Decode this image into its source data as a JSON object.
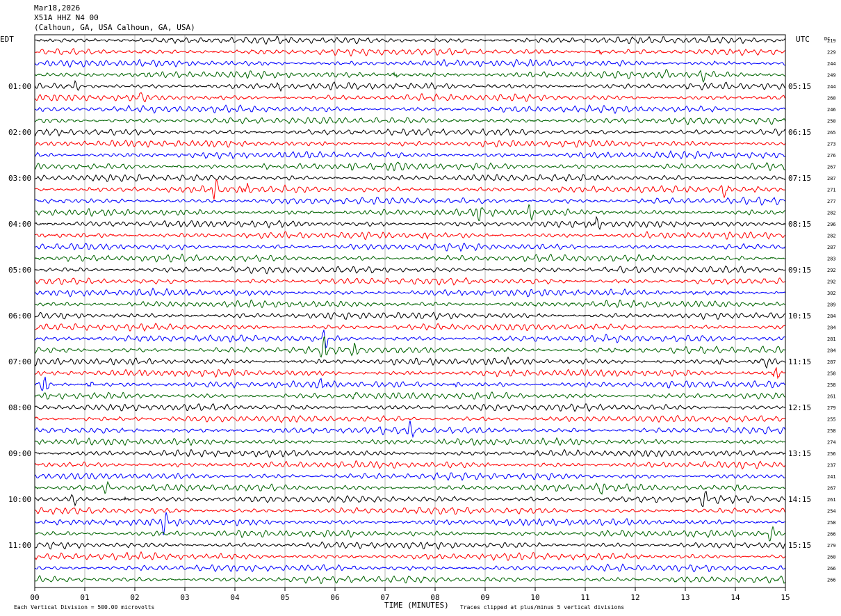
{
  "header": {
    "date": "Mar18,2026",
    "station": "X51A HHZ N4 00",
    "location": "(Calhoun, GA, USA Calhoun, GA, USA)"
  },
  "left_axis_label": "EDT",
  "right_axis_label": "UTC",
  "dc_label": "DC",
  "footer": {
    "scale_note": "Each Vertical Division =  500.00 microvolts",
    "clip_note": "Traces clipped at plus/minus 5 vertical divisions",
    "xlabel": "TIME (MINUTES)"
  },
  "colors": {
    "cycle": [
      "#000000",
      "#ff0000",
      "#0000ff",
      "#006400"
    ],
    "grid": "#999999"
  },
  "chart_data": {
    "type": "line",
    "subtype": "helicorder",
    "xlabel": "TIME (MINUTES)",
    "xlim": [
      0,
      15
    ],
    "x_ticks": [
      "00",
      "01",
      "02",
      "03",
      "04",
      "05",
      "06",
      "07",
      "08",
      "09",
      "10",
      "11",
      "12",
      "13",
      "14",
      "15"
    ],
    "rows": 48,
    "minutes_per_row": 15,
    "left_time_labels": [
      "01:00",
      "02:00",
      "03:00",
      "04:00",
      "05:00",
      "06:00",
      "07:00",
      "08:00",
      "09:00",
      "10:00",
      "11:00"
    ],
    "right_time_labels": [
      "05:15",
      "06:15",
      "07:15",
      "08:15",
      "09:15",
      "10:15",
      "11:15",
      "12:15",
      "13:15",
      "14:15",
      "15:15"
    ],
    "time_label_rows": [
      4,
      8,
      12,
      16,
      20,
      24,
      28,
      32,
      36,
      40,
      44
    ],
    "dc_offsets": [
      219,
      229,
      244,
      249,
      244,
      260,
      246,
      250,
      265,
      273,
      276,
      267,
      287,
      271,
      277,
      282,
      296,
      282,
      287,
      283,
      292,
      292,
      302,
      289,
      284,
      284,
      281,
      284,
      287,
      258,
      258,
      261,
      279,
      255,
      258,
      274,
      256,
      237,
      241,
      267,
      261,
      254,
      258,
      266,
      279,
      260,
      266,
      266
    ],
    "events": [
      {
        "row": 1,
        "minute": 11.3,
        "amp": 1.8
      },
      {
        "row": 3,
        "minute": 7.2,
        "amp": 2.0
      },
      {
        "row": 3,
        "minute": 12.6,
        "amp": 1.8
      },
      {
        "row": 3,
        "minute": 13.4,
        "amp": 1.6
      },
      {
        "row": 4,
        "minute": 0.8,
        "amp": 1.5
      },
      {
        "row": 4,
        "minute": 4.9,
        "amp": 1.5
      },
      {
        "row": 5,
        "minute": 2.1,
        "amp": 1.6
      },
      {
        "row": 11,
        "minute": 4.6,
        "amp": 1.6
      },
      {
        "row": 11,
        "minute": 6.3,
        "amp": 1.5
      },
      {
        "row": 11,
        "minute": 7.2,
        "amp": 2.2
      },
      {
        "row": 13,
        "minute": 3.6,
        "amp": 2.5
      },
      {
        "row": 13,
        "minute": 4.2,
        "amp": 2.8
      },
      {
        "row": 13,
        "minute": 13.8,
        "amp": 3.5
      },
      {
        "row": 15,
        "minute": 8.9,
        "amp": 2.0
      },
      {
        "row": 15,
        "minute": 9.9,
        "amp": 2.0
      },
      {
        "row": 16,
        "minute": 11.2,
        "amp": 3.0
      },
      {
        "row": 17,
        "minute": 7.8,
        "amp": 1.5
      },
      {
        "row": 26,
        "minute": 5.8,
        "amp": 2.5
      },
      {
        "row": 27,
        "minute": 5.8,
        "amp": 3.5
      },
      {
        "row": 27,
        "minute": 6.4,
        "amp": 2.0
      },
      {
        "row": 28,
        "minute": 13.7,
        "amp": 2.0
      },
      {
        "row": 28,
        "minute": 14.6,
        "amp": 2.2
      },
      {
        "row": 29,
        "minute": 14.8,
        "amp": 3.0
      },
      {
        "row": 30,
        "minute": 0.2,
        "amp": 4.5
      },
      {
        "row": 30,
        "minute": 1.1,
        "amp": 2.5
      },
      {
        "row": 30,
        "minute": 5.8,
        "amp": 4.5
      },
      {
        "row": 30,
        "minute": 8.4,
        "amp": 2.0
      },
      {
        "row": 31,
        "minute": 6.4,
        "amp": 1.8
      },
      {
        "row": 34,
        "minute": 7.5,
        "amp": 2.8
      },
      {
        "row": 39,
        "minute": 1.4,
        "amp": 3.0
      },
      {
        "row": 39,
        "minute": 11.3,
        "amp": 2.2
      },
      {
        "row": 39,
        "minute": 14.1,
        "amp": 2.0
      },
      {
        "row": 40,
        "minute": 0.8,
        "amp": 2.5
      },
      {
        "row": 40,
        "minute": 1.8,
        "amp": 2.0
      },
      {
        "row": 40,
        "minute": 13.4,
        "amp": 2.2
      },
      {
        "row": 42,
        "minute": 2.6,
        "amp": 2.2
      },
      {
        "row": 43,
        "minute": 14.7,
        "amp": 3.0
      }
    ]
  }
}
